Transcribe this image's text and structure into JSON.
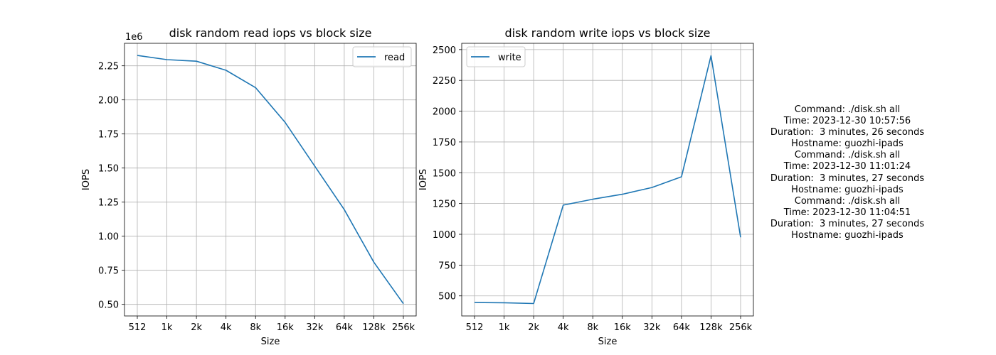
{
  "chart_data": [
    {
      "type": "line",
      "title": "disk random read iops vs block size",
      "xlabel": "Size",
      "ylabel": "IOPS",
      "y_offset_label": "1e6",
      "categories": [
        "512",
        "1k",
        "2k",
        "4k",
        "8k",
        "16k",
        "32k",
        "64k",
        "128k",
        "256k"
      ],
      "series": [
        {
          "name": "read",
          "color": "#1f77b4",
          "values": [
            2326000,
            2295000,
            2284000,
            2217000,
            2090000,
            1835000,
            1515000,
            1195000,
            810000,
            505000
          ]
        }
      ],
      "yticks": [
        500000,
        750000,
        1000000,
        1250000,
        1500000,
        1750000,
        2000000,
        2250000
      ],
      "ytick_labels": [
        "0.50",
        "0.75",
        "1.00",
        "1.25",
        "1.50",
        "1.75",
        "2.00",
        "2.25"
      ],
      "ylim": [
        415000,
        2415000
      ],
      "grid": true,
      "legend": "upper right"
    },
    {
      "type": "line",
      "title": "disk random write iops vs block size",
      "xlabel": "Size",
      "ylabel": "IOPS",
      "categories": [
        "512",
        "1k",
        "2k",
        "4k",
        "8k",
        "16k",
        "32k",
        "64k",
        "128k",
        "256k"
      ],
      "series": [
        {
          "name": "write",
          "color": "#1f77b4",
          "values": [
            446,
            444,
            438,
            1237,
            1285,
            1325,
            1380,
            1467,
            2450,
            975
          ]
        }
      ],
      "yticks": [
        500,
        750,
        1000,
        1250,
        1500,
        1750,
        2000,
        2250,
        2500
      ],
      "ytick_labels": [
        "500",
        "750",
        "1000",
        "1250",
        "1500",
        "1750",
        "2000",
        "2250",
        "2500"
      ],
      "ylim": [
        337,
        2551
      ],
      "grid": true,
      "legend": "upper left"
    }
  ],
  "info": [
    "Command: ./disk.sh all",
    "Time: 2023-12-30 10:57:56",
    "Duration:  3 minutes, 26 seconds",
    "Hostname: guozhi-ipads",
    "Command: ./disk.sh all",
    "Time: 2023-12-30 11:01:24",
    "Duration:  3 minutes, 27 seconds",
    "Hostname: guozhi-ipads",
    "Command: ./disk.sh all",
    "Time: 2023-12-30 11:04:51",
    "Duration:  3 minutes, 27 seconds",
    "Hostname: guozhi-ipads"
  ]
}
